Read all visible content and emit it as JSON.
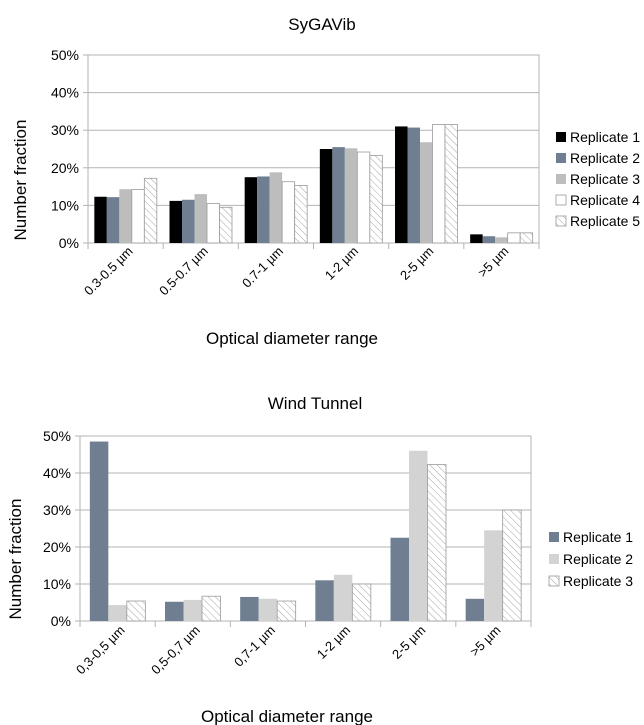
{
  "chart_data": [
    {
      "type": "bar",
      "title": "SyGAVib",
      "xlabel": "Optical diameter range",
      "ylabel": "Number fraction",
      "ylim": [
        0,
        50
      ],
      "yticks": [
        "0%",
        "10%",
        "20%",
        "30%",
        "40%",
        "50%"
      ],
      "categories": [
        "0.3-0.5 µm",
        "0.5-0.7 µm",
        "0.7-1 µm",
        "1-2 µm",
        "2-5 µm",
        ">5 µm"
      ],
      "grid": true,
      "legend": "right",
      "series": [
        {
          "name": "Replicate 1",
          "color": "#000000",
          "pattern": "solid",
          "values": [
            12.3,
            11.2,
            17.5,
            25.0,
            31.0,
            2.3
          ]
        },
        {
          "name": "Replicate 2",
          "color": "#6f7f91",
          "pattern": "solid",
          "values": [
            12.2,
            11.5,
            17.7,
            25.5,
            30.7,
            1.8
          ]
        },
        {
          "name": "Replicate 3",
          "color": "#bdbdbd",
          "pattern": "solid",
          "values": [
            14.3,
            13.0,
            18.8,
            25.2,
            26.8,
            1.5
          ]
        },
        {
          "name": "Replicate 4",
          "color": "#ffffff",
          "pattern": "solid",
          "values": [
            14.2,
            10.5,
            16.3,
            24.2,
            31.5,
            2.7
          ]
        },
        {
          "name": "Replicate 5",
          "color": "#ffffff",
          "pattern": "hatch",
          "values": [
            17.2,
            9.5,
            15.3,
            23.3,
            31.5,
            2.7
          ]
        }
      ]
    },
    {
      "type": "bar",
      "title": "Wind Tunnel",
      "xlabel": "Optical diameter range",
      "ylabel": "Number fraction",
      "ylim": [
        0,
        50
      ],
      "yticks": [
        "0%",
        "10%",
        "20%",
        "30%",
        "40%",
        "50%"
      ],
      "categories": [
        "0,3-0,5 µm",
        "0,5-0,7 µm",
        "0,7-1 µm",
        "1-2 µm",
        "2-5 µm",
        ">5 µm"
      ],
      "grid": true,
      "legend": "right",
      "series": [
        {
          "name": "Replicate 1",
          "color": "#6f7f91",
          "pattern": "solid",
          "values": [
            48.5,
            5.2,
            6.5,
            11.0,
            22.5,
            6.0
          ]
        },
        {
          "name": "Replicate 2",
          "color": "#d3d3d3",
          "pattern": "solid",
          "values": [
            4.3,
            5.7,
            6.0,
            12.5,
            46.0,
            24.5
          ]
        },
        {
          "name": "Replicate 3",
          "color": "#ffffff",
          "pattern": "hatch",
          "values": [
            5.4,
            6.7,
            5.4,
            10.0,
            42.3,
            30.0
          ]
        }
      ]
    }
  ]
}
